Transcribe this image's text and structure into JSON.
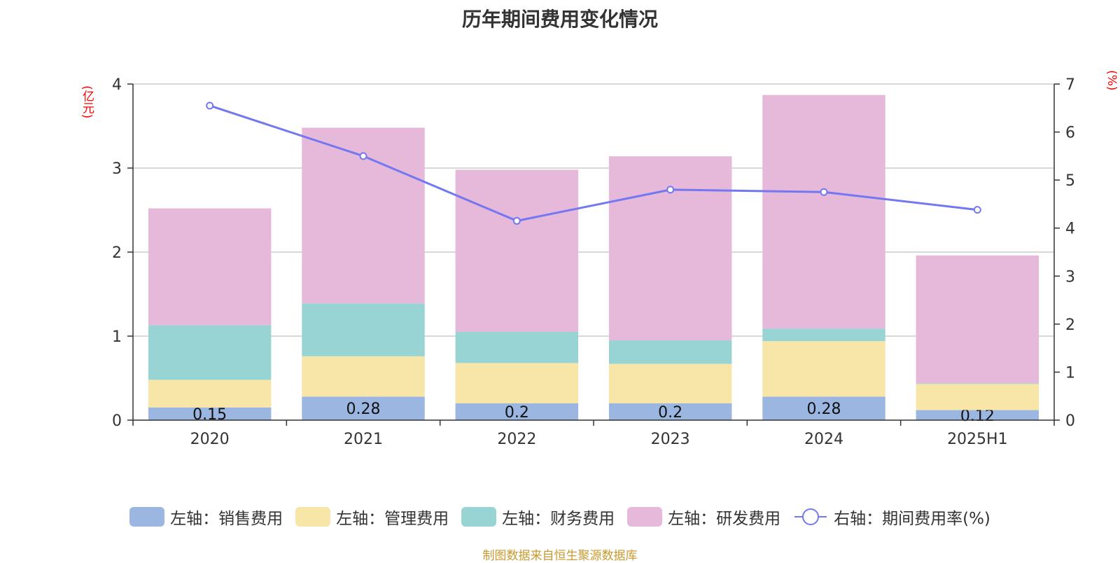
{
  "chart_data": {
    "type": "bar",
    "title": "历年期间费用变化情况",
    "categories": [
      "2020",
      "2021",
      "2022",
      "2023",
      "2024",
      "2025H1"
    ],
    "left_unit": "(亿元)",
    "right_unit": "(%)",
    "left_ylim": [
      0,
      4
    ],
    "left_ticks": [
      "0",
      "1",
      "2",
      "3",
      "4"
    ],
    "right_ylim": [
      0,
      7
    ],
    "right_ticks": [
      "0",
      "1",
      "2",
      "3",
      "4",
      "5",
      "6",
      "7"
    ],
    "grid": true,
    "legend_position": "bottom",
    "series": [
      {
        "name": "左轴：销售费用",
        "type": "bar",
        "stack": "left",
        "color": "#9bb6e0",
        "values": [
          0.15,
          0.28,
          0.2,
          0.2,
          0.28,
          0.12
        ],
        "labels": [
          "0.15",
          "0.28",
          "0.2",
          "0.2",
          "0.28",
          "0.12"
        ]
      },
      {
        "name": "左轴：管理费用",
        "type": "bar",
        "stack": "left",
        "color": "#f7e6a8",
        "values": [
          0.33,
          0.48,
          0.48,
          0.47,
          0.66,
          0.31
        ]
      },
      {
        "name": "左轴：财务费用",
        "type": "bar",
        "stack": "left",
        "color": "#98d4d4",
        "values": [
          0.65,
          0.63,
          0.37,
          0.28,
          0.15,
          0.01
        ]
      },
      {
        "name": "左轴：研发费用",
        "type": "bar",
        "stack": "left",
        "color": "#e6b8d9",
        "values": [
          1.39,
          2.09,
          1.93,
          2.19,
          2.78,
          1.52
        ]
      },
      {
        "name": "右轴：期间费用率(%)",
        "type": "line",
        "axis": "right",
        "color": "#7378f0",
        "values": [
          6.55,
          5.5,
          4.15,
          4.8,
          4.75,
          4.38
        ]
      }
    ]
  },
  "footer": {
    "source": "制图数据来自恒生聚源数据库"
  }
}
